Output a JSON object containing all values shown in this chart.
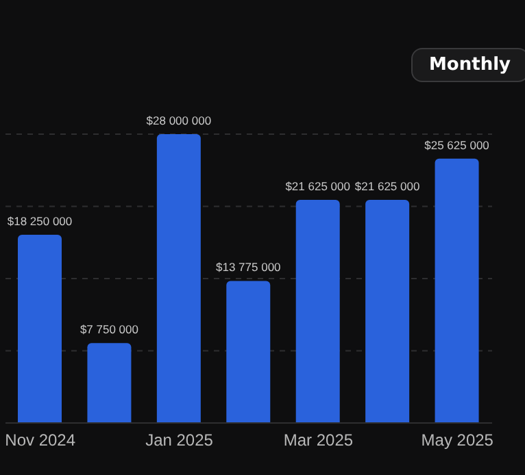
{
  "chart_data": {
    "type": "bar",
    "categories": [
      "Nov 2024",
      null,
      "Jan 2025",
      null,
      "Mar 2025",
      null,
      "May 2025"
    ],
    "values": [
      18250000,
      7750000,
      28000000,
      13775000,
      21625000,
      21625000,
      25625000
    ],
    "value_labels": [
      "$18 250 000",
      "$7 750 000",
      "$28 000 000",
      "$13 775 000",
      "$21 625 000",
      "$21 625 000",
      "$25 625 000"
    ],
    "color": "#2a62dc",
    "ylim": [
      0,
      28000000
    ],
    "yticks": [
      {
        "value": 0,
        "label": null
      },
      {
        "value": 7000000,
        "label": null
      },
      {
        "value": 14000000,
        "label": null
      },
      {
        "value": 21000000,
        "label": null
      },
      {
        "value": 28000000,
        "label": null
      }
    ],
    "grid": "y",
    "tick_labels": "x",
    "annotations": [
      "Monthly"
    ]
  }
}
